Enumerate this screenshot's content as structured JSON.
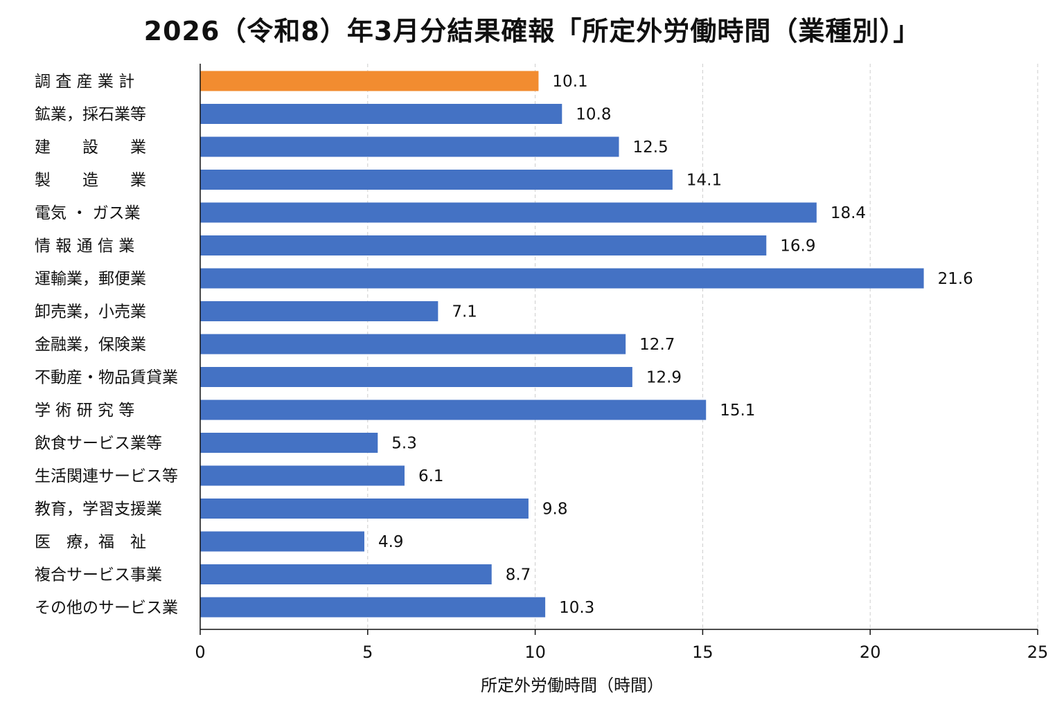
{
  "chart_data": {
    "type": "bar",
    "orientation": "horizontal",
    "title": "2026（令和8）年3月分結果確報「所定外労働時間（業種別）」",
    "xlabel": "所定外労働時間（時間）",
    "ylabel": "",
    "xlim": [
      0,
      25
    ],
    "xticks": [
      0,
      5,
      10,
      15,
      20,
      25
    ],
    "grid": "vertical dashed",
    "categories": [
      "調 査 産 業 計",
      "鉱業，採石業等",
      "建　　設　　業",
      "製　　造　　業",
      "電気 ・ ガス業",
      "情 報 通 信 業",
      "運輸業，郵便業",
      "卸売業，小売業",
      "金融業，保険業",
      "不動産・物品賃貸業",
      "学 術 研 究 等",
      "飲食サービス業等",
      "生活関連サービス等",
      "教育，学習支援業",
      "医　療，福　祉",
      "複合サービス事業",
      "その他のサービス業"
    ],
    "values": [
      10.1,
      10.8,
      12.5,
      14.1,
      18.4,
      16.9,
      21.6,
      7.1,
      12.7,
      12.9,
      15.1,
      5.3,
      6.1,
      9.8,
      4.9,
      8.7,
      10.3
    ],
    "value_labels": [
      "10.1",
      "10.8",
      "12.5",
      "14.1",
      "18.4",
      "16.9",
      "21.6",
      "7.1",
      "12.7",
      "12.9",
      "15.1",
      "5.3",
      "6.1",
      "9.8",
      "4.9",
      "8.7",
      "10.3"
    ],
    "colors": {
      "highlight": "#f28c30",
      "bar": "#4472c4",
      "grid": "#cccccc",
      "axis": "#111111"
    },
    "highlight_index": 0
  }
}
